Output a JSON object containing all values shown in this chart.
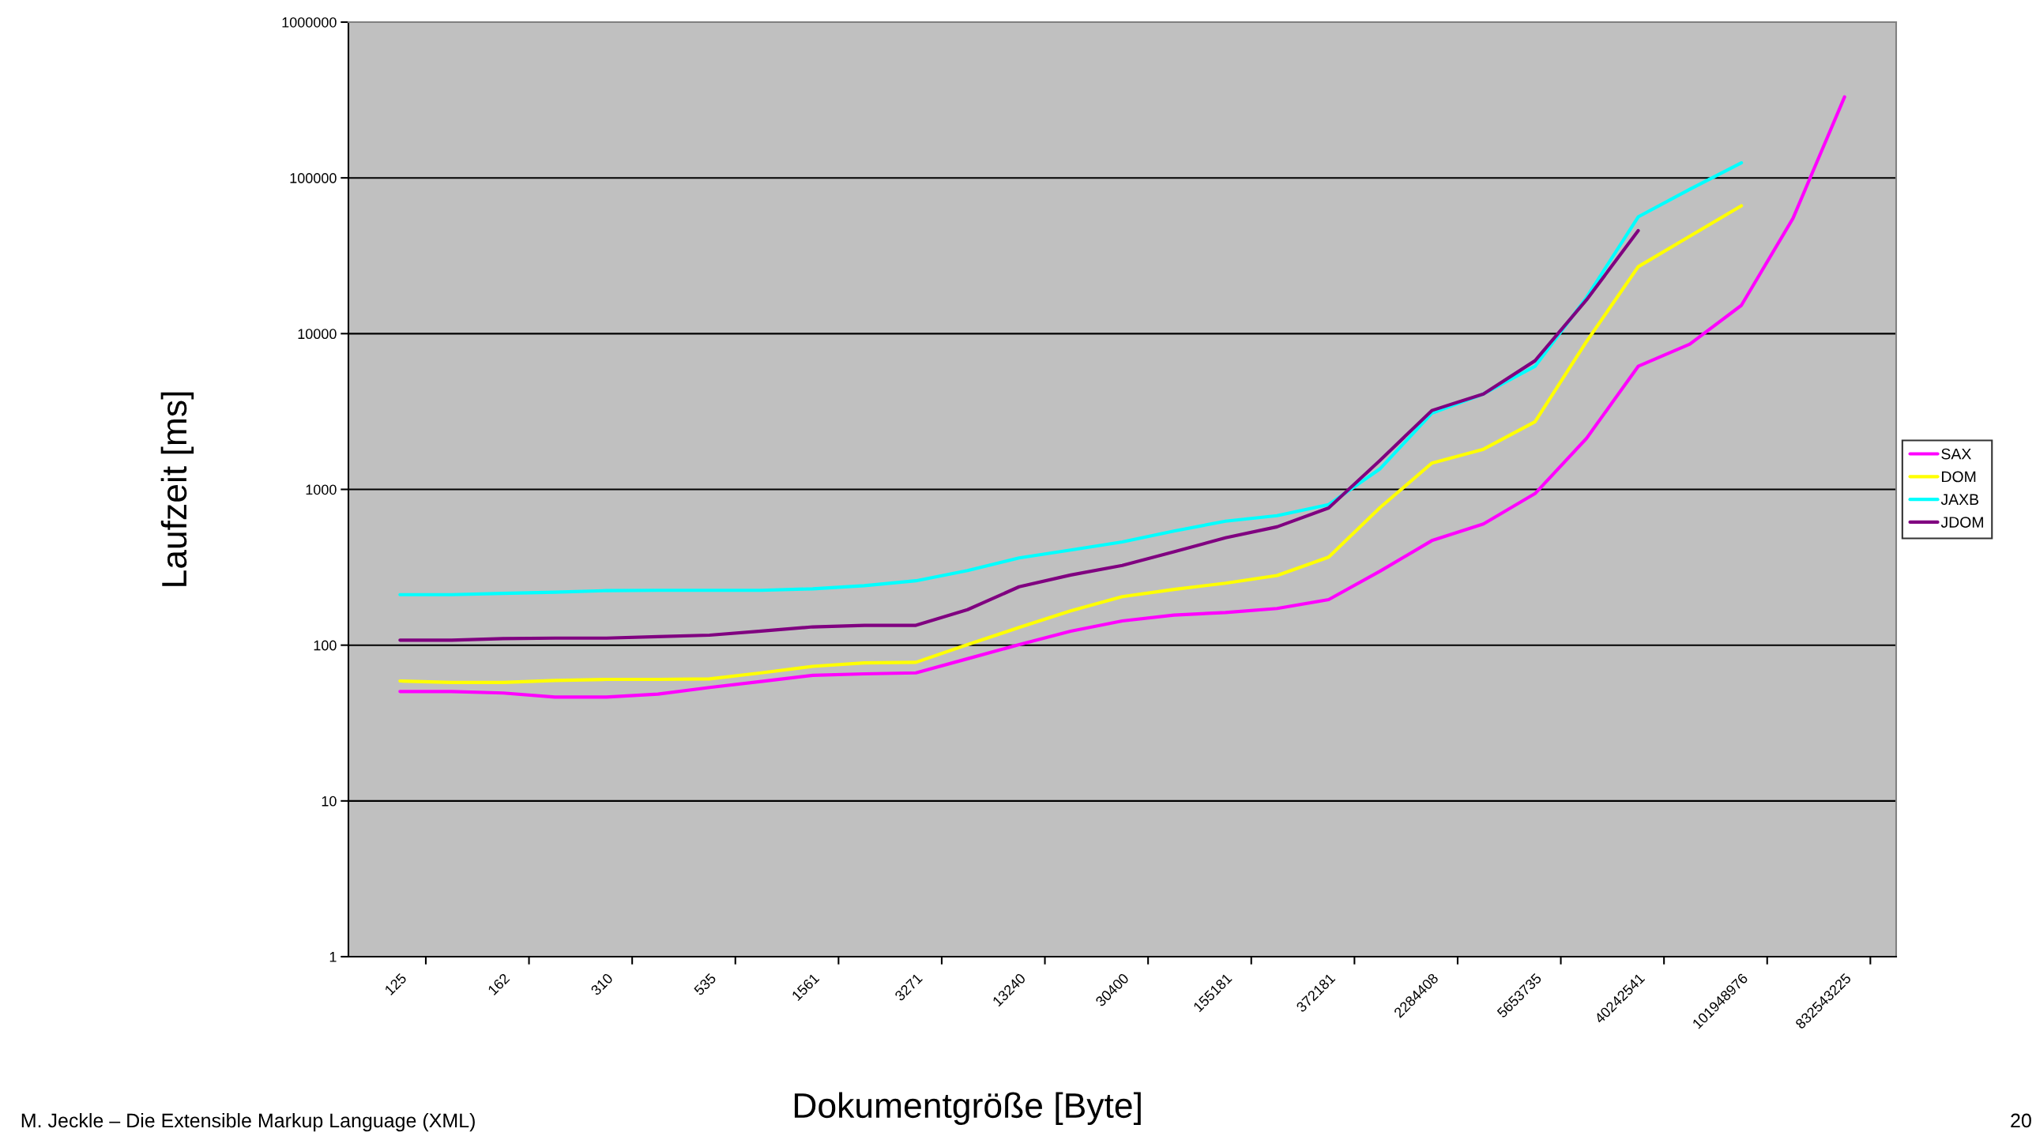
{
  "chart_data": {
    "type": "line",
    "xlabel": "Dokumentgröße [Byte]",
    "ylabel": "Laufzeit [ms]",
    "categories": [
      "125",
      null,
      "162",
      null,
      "310",
      null,
      "535",
      null,
      "1561",
      null,
      "3271",
      null,
      "13240",
      null,
      "30400",
      null,
      "155181",
      null,
      "372181",
      null,
      "2284408",
      null,
      "5653735",
      null,
      "40242541",
      null,
      "101948976",
      null,
      "832543225"
    ],
    "series": [
      {
        "name": "SAX",
        "color": "#ff00ff",
        "values": [
          50.4,
          50.4,
          49.3,
          46.4,
          46.4,
          48.5,
          53.5,
          58.5,
          64,
          65.4,
          66.4,
          81.8,
          100.7,
          123,
          143,
          156,
          162,
          172,
          196,
          299,
          469,
          600,
          940,
          2130,
          6170,
          8560,
          15200,
          55000,
          331000
        ]
      },
      {
        "name": "DOM",
        "color": "#ffff00",
        "values": [
          58.9,
          57.6,
          57.6,
          59.3,
          60.3,
          60.3,
          60.7,
          66.4,
          73.1,
          77,
          77.6,
          100.7,
          129.8,
          166,
          205,
          228,
          250,
          280,
          367,
          767,
          1475,
          1810,
          2720,
          8910,
          26900,
          42200,
          66200,
          null,
          null
        ]
      },
      {
        "name": "JAXB",
        "color": "#00ffff",
        "values": [
          211,
          211,
          215,
          219,
          224,
          225,
          225,
          225,
          230,
          241,
          259,
          301,
          363,
          408,
          460,
          540,
          625,
          678,
          798,
          1360,
          3080,
          4100,
          6170,
          17100,
          56200,
          84500,
          125000,
          null,
          null
        ]
      },
      {
        "name": "JDOM",
        "color": "#800080",
        "values": [
          107.7,
          107.7,
          110.1,
          111,
          111,
          113.5,
          116,
          123,
          131,
          134,
          134,
          169,
          237,
          282,
          325,
          398,
          489,
          575,
          760,
          1540,
          3210,
          4100,
          6700,
          16500,
          45800,
          null,
          null,
          null,
          null
        ]
      }
    ],
    "log": "y",
    "ylim": [
      1,
      1000000
    ],
    "yticks": [
      1,
      10,
      100,
      1000,
      10000,
      100000,
      1000000
    ],
    "grid": "y",
    "legend": "right",
    "annotations": [
      "M. Jeckle – Die Extensible Markup Language (XML)",
      "20"
    ]
  }
}
